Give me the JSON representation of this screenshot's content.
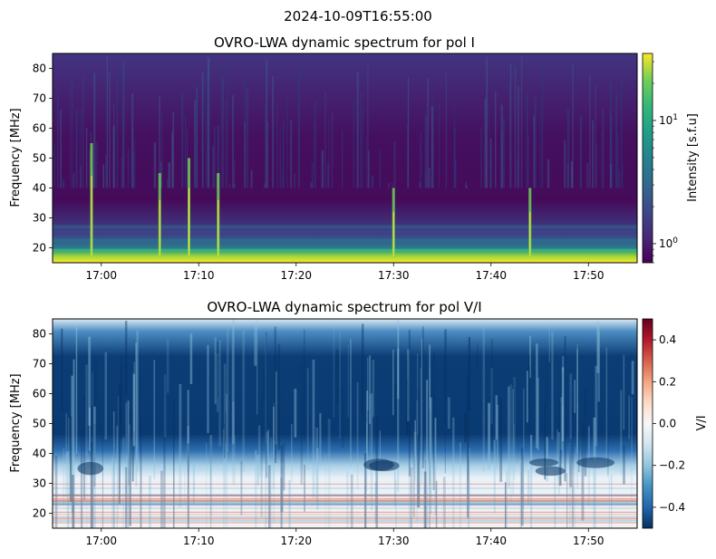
{
  "suptitle": "2024-10-09T16:55:00",
  "chart_data": [
    {
      "type": "heatmap",
      "title": "OVRO-LWA dynamic spectrum for pol I",
      "xlabel": "",
      "ylabel": "Frequency [MHz]",
      "xlim": [
        "16:55",
        "17:55"
      ],
      "ylim": [
        15,
        85
      ],
      "x_ticks": [
        "17:00",
        "17:10",
        "17:20",
        "17:30",
        "17:40",
        "17:50"
      ],
      "y_ticks": [
        20,
        30,
        40,
        50,
        60,
        70,
        80
      ],
      "colormap": "viridis",
      "colorbar": {
        "label": "Intensity [s.f.u]",
        "scale": "log",
        "range": [
          0.7,
          35
        ],
        "ticks": [
          1,
          10
        ],
        "tick_labels": [
          "10^0",
          "10^1"
        ]
      },
      "grid": false,
      "features": [
        {
          "time": "16:59",
          "freq_range": [
            17,
            55
          ],
          "note": "bright burst"
        },
        {
          "time": "17:06",
          "freq_range": [
            17,
            45
          ],
          "note": "burst"
        },
        {
          "time": "17:09",
          "freq_range": [
            17,
            50
          ],
          "note": "burst"
        },
        {
          "time": "17:12",
          "freq_range": [
            17,
            45
          ],
          "note": "burst"
        },
        {
          "time": "17:30",
          "freq_range": [
            17,
            40
          ],
          "note": "burst"
        },
        {
          "time": "17:44",
          "freq_range": [
            17,
            40
          ],
          "note": "burst"
        },
        {
          "time": "16:55-17:55",
          "freq_range": [
            15,
            19
          ],
          "note": "bright band near 17 MHz"
        }
      ]
    },
    {
      "type": "heatmap",
      "title": "OVRO-LWA dynamic spectrum for pol V/I",
      "xlabel": "",
      "ylabel": "Frequency [MHz]",
      "xlim": [
        "16:55",
        "17:55"
      ],
      "ylim": [
        15,
        85
      ],
      "x_ticks": [
        "17:00",
        "17:10",
        "17:20",
        "17:30",
        "17:40",
        "17:50"
      ],
      "y_ticks": [
        20,
        30,
        40,
        50,
        60,
        70,
        80
      ],
      "colormap": "RdBu_r",
      "colorbar": {
        "label": "V/I",
        "scale": "linear",
        "range": [
          -0.5,
          0.5
        ],
        "ticks": [
          -0.4,
          -0.2,
          0.0,
          0.2,
          0.4
        ],
        "tick_labels": [
          "−0.4",
          "−0.2",
          "0.0",
          "0.2",
          "0.4"
        ]
      },
      "grid": false,
      "features": [
        {
          "freq_range": [
            40,
            80
          ],
          "value": -0.5,
          "note": "strongly negative (dark blue) region"
        },
        {
          "freq_range": [
            30,
            40
          ],
          "value": -0.15,
          "note": "light blue / white transition"
        },
        {
          "freq_range": [
            15,
            30
          ],
          "value": 0.0,
          "note": "near-zero with red/blue striations"
        }
      ]
    }
  ]
}
